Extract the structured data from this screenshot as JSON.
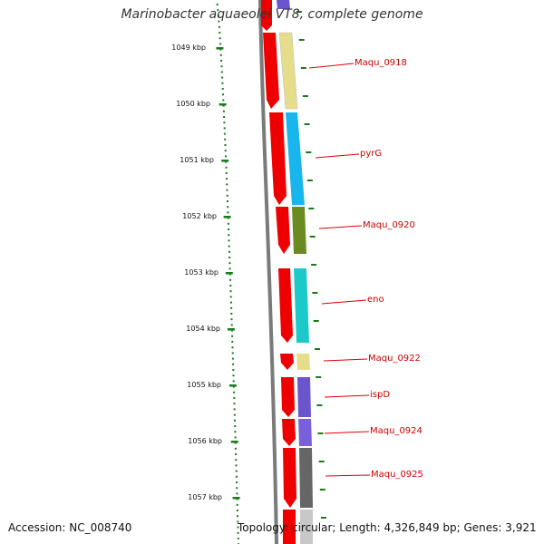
{
  "title": "Marinobacter aquaeolei VT8, complete genome",
  "footer": {
    "accession": "Accession: NC_008740",
    "topology": "Topology: circular; Length: 4,326,849 bp; Genes: 3,921"
  },
  "ruler": {
    "ticks": [
      "1049 kbp",
      "1050 kbp",
      "1051 kbp",
      "1052 kbp",
      "1053 kbp",
      "1054 kbp",
      "1055 kbp",
      "1056 kbp",
      "1057 kbp"
    ]
  },
  "genes": [
    {
      "name": "Maqu_0918"
    },
    {
      "name": "pyrG"
    },
    {
      "name": "Maqu_0920"
    },
    {
      "name": "eno"
    },
    {
      "name": "Maqu_0922"
    },
    {
      "name": "ispD"
    },
    {
      "name": "Maqu_0924"
    },
    {
      "name": "Maqu_0925"
    }
  ],
  "colors": {
    "ruler_ticks": "#1a7a1a",
    "backbone": "#808080",
    "cds": "#ee0000",
    "label": "#cc0000",
    "gene_fills": [
      "#e6dd8a",
      "#19b6ee",
      "#6b8a22",
      "#1cc9c9",
      "#e6dd8a",
      "#6a55cc",
      "#7a60d8",
      "#666666"
    ]
  }
}
